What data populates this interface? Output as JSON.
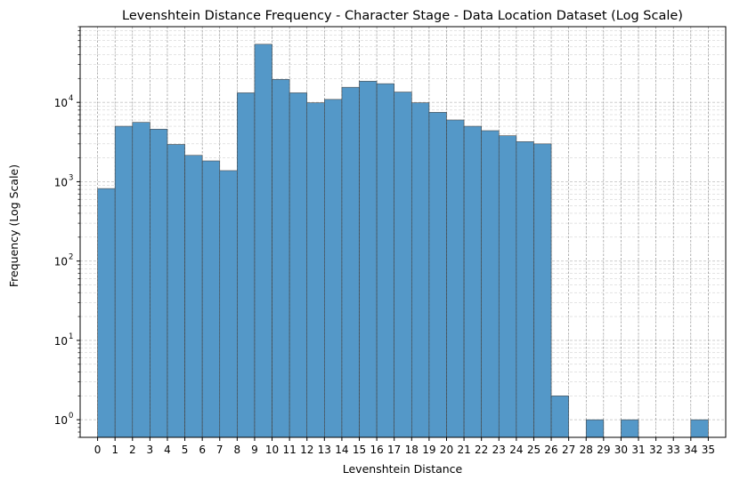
{
  "chart_data": {
    "type": "bar",
    "title": "Levenshtein Distance Frequency - Character Stage - Data Location Dataset (Log Scale)",
    "xlabel": "Levenshtein Distance",
    "ylabel": "Frequency (Log Scale)",
    "y_scale": "log",
    "ylim": [
      0.6,
      90000
    ],
    "xlim": [
      -1,
      36
    ],
    "grid": true,
    "legend": "none",
    "bar_color": "#5498c8",
    "x_ticks": [
      0,
      1,
      2,
      3,
      4,
      5,
      6,
      7,
      8,
      9,
      10,
      11,
      12,
      13,
      14,
      15,
      16,
      17,
      18,
      19,
      20,
      21,
      22,
      23,
      24,
      25,
      26,
      27,
      28,
      29,
      30,
      31,
      32,
      33,
      34,
      35
    ],
    "y_ticks": [
      {
        "value": 1,
        "label": "10",
        "exp": "0"
      },
      {
        "value": 10,
        "label": "10",
        "exp": "1"
      },
      {
        "value": 100,
        "label": "10",
        "exp": "2"
      },
      {
        "value": 1000,
        "label": "10",
        "exp": "3"
      },
      {
        "value": 10000,
        "label": "10",
        "exp": "4"
      }
    ],
    "bins": [
      {
        "x0": 0,
        "x1": 1,
        "value": 820
      },
      {
        "x0": 1,
        "x1": 2,
        "value": 5000
      },
      {
        "x0": 2,
        "x1": 3,
        "value": 5600
      },
      {
        "x0": 3,
        "x1": 4,
        "value": 4600
      },
      {
        "x0": 4,
        "x1": 5,
        "value": 2950
      },
      {
        "x0": 5,
        "x1": 6,
        "value": 2150
      },
      {
        "x0": 6,
        "x1": 7,
        "value": 1830
      },
      {
        "x0": 7,
        "x1": 8,
        "value": 1380
      },
      {
        "x0": 8,
        "x1": 9,
        "value": 13200
      },
      {
        "x0": 9,
        "x1": 10,
        "value": 54000
      },
      {
        "x0": 10,
        "x1": 11,
        "value": 19500
      },
      {
        "x0": 11,
        "x1": 12,
        "value": 13200
      },
      {
        "x0": 12,
        "x1": 13,
        "value": 9900
      },
      {
        "x0": 13,
        "x1": 14,
        "value": 10900
      },
      {
        "x0": 14,
        "x1": 15,
        "value": 15500
      },
      {
        "x0": 15,
        "x1": 16,
        "value": 18500
      },
      {
        "x0": 16,
        "x1": 17,
        "value": 17200
      },
      {
        "x0": 17,
        "x1": 18,
        "value": 13500
      },
      {
        "x0": 18,
        "x1": 19,
        "value": 9900
      },
      {
        "x0": 19,
        "x1": 20,
        "value": 7500
      },
      {
        "x0": 20,
        "x1": 21,
        "value": 6000
      },
      {
        "x0": 21,
        "x1": 22,
        "value": 5000
      },
      {
        "x0": 22,
        "x1": 23,
        "value": 4400
      },
      {
        "x0": 23,
        "x1": 24,
        "value": 3800
      },
      {
        "x0": 24,
        "x1": 25,
        "value": 3200
      },
      {
        "x0": 25,
        "x1": 26,
        "value": 3000
      },
      {
        "x0": 26,
        "x1": 27,
        "value": 2
      },
      {
        "x0": 28,
        "x1": 29,
        "value": 1
      },
      {
        "x0": 30,
        "x1": 31,
        "value": 1
      },
      {
        "x0": 34,
        "x1": 35,
        "value": 1
      }
    ]
  }
}
